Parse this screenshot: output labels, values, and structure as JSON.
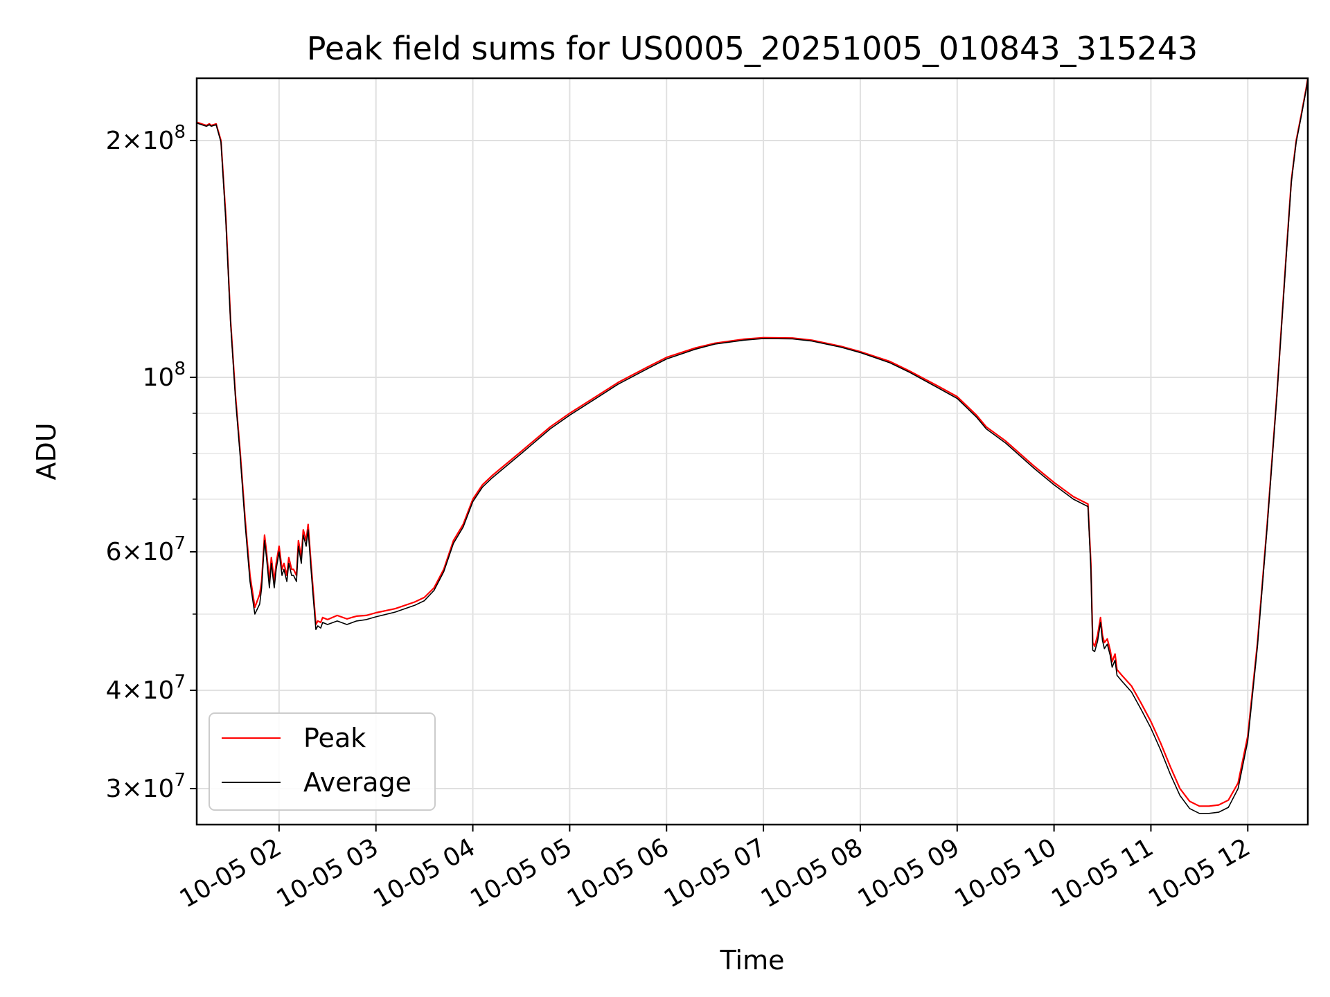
{
  "chart_data": {
    "type": "line",
    "title": "Peak field sums for US0005_20251005_010843_315243",
    "xlabel": "Time",
    "ylabel": "ADU",
    "yscale": "log",
    "xlim_hours": [
      1.15,
      12.62
    ],
    "ylim": [
      27000000,
      240000000
    ],
    "grid": true,
    "legend_position": "lower-left",
    "x_ticks": [
      {
        "hour": 2,
        "label": "10-05 02"
      },
      {
        "hour": 3,
        "label": "10-05 03"
      },
      {
        "hour": 4,
        "label": "10-05 04"
      },
      {
        "hour": 5,
        "label": "10-05 05"
      },
      {
        "hour": 6,
        "label": "10-05 06"
      },
      {
        "hour": 7,
        "label": "10-05 07"
      },
      {
        "hour": 8,
        "label": "10-05 08"
      },
      {
        "hour": 9,
        "label": "10-05 09"
      },
      {
        "hour": 10,
        "label": "10-05 10"
      },
      {
        "hour": 11,
        "label": "10-05 11"
      },
      {
        "hour": 12,
        "label": "10-05 12"
      }
    ],
    "y_ticks": [
      {
        "value": 30000000,
        "mantissa": "3",
        "exponent": "7"
      },
      {
        "value": 40000000,
        "mantissa": "4",
        "exponent": "7"
      },
      {
        "value": 60000000,
        "mantissa": "6",
        "exponent": "7"
      },
      {
        "value": 100000000,
        "mantissa": "",
        "exponent": "8"
      },
      {
        "value": 200000000,
        "mantissa": "2",
        "exponent": "8"
      }
    ],
    "y_minor_ticks": [
      50000000,
      70000000,
      80000000,
      90000000
    ],
    "series": [
      {
        "name": "Peak",
        "color": "#ff0000",
        "x": [
          1.15,
          1.2,
          1.25,
          1.28,
          1.3,
          1.35,
          1.4,
          1.45,
          1.5,
          1.55,
          1.6,
          1.65,
          1.7,
          1.75,
          1.8,
          1.82,
          1.85,
          1.87,
          1.9,
          1.92,
          1.95,
          1.97,
          2.0,
          2.03,
          2.05,
          2.08,
          2.1,
          2.13,
          2.15,
          2.18,
          2.2,
          2.23,
          2.25,
          2.28,
          2.3,
          2.33,
          2.35,
          2.38,
          2.4,
          2.43,
          2.45,
          2.5,
          2.6,
          2.7,
          2.8,
          2.9,
          3.0,
          3.2,
          3.4,
          3.5,
          3.6,
          3.7,
          3.8,
          3.9,
          4.0,
          4.1,
          4.2,
          4.5,
          4.8,
          5.0,
          5.3,
          5.5,
          5.8,
          6.0,
          6.3,
          6.5,
          6.8,
          7.0,
          7.3,
          7.5,
          7.8,
          8.0,
          8.3,
          8.5,
          8.8,
          9.0,
          9.2,
          9.3,
          9.5,
          9.8,
          10.0,
          10.2,
          10.35,
          10.38,
          10.4,
          10.42,
          10.45,
          10.48,
          10.5,
          10.52,
          10.55,
          10.58,
          10.6,
          10.63,
          10.65,
          10.7,
          10.8,
          10.9,
          11.0,
          11.1,
          11.2,
          11.3,
          11.4,
          11.5,
          11.6,
          11.7,
          11.8,
          11.9,
          12.0,
          12.1,
          12.2,
          12.3,
          12.4,
          12.45,
          12.5,
          12.55,
          12.6,
          12.62
        ],
        "y": [
          211000000,
          210000000,
          209000000,
          210000000,
          209000000,
          210000000,
          200000000,
          160000000,
          118000000,
          95000000,
          80000000,
          66000000,
          56000000,
          51000000,
          53000000,
          55000000,
          63000000,
          60000000,
          55000000,
          59000000,
          55000000,
          58000000,
          61000000,
          57000000,
          58000000,
          56000000,
          59000000,
          57000000,
          57000000,
          56000000,
          62000000,
          59000000,
          64000000,
          62000000,
          65000000,
          58000000,
          54000000,
          48500000,
          49000000,
          48800000,
          49500000,
          49200000,
          49800000,
          49300000,
          49700000,
          49800000,
          50200000,
          50800000,
          51800000,
          52500000,
          54000000,
          57000000,
          62000000,
          65000000,
          70000000,
          73000000,
          75000000,
          80500000,
          86500000,
          90000000,
          95000000,
          98500000,
          103000000,
          106000000,
          109000000,
          110500000,
          111800000,
          112300000,
          112200000,
          111500000,
          109500000,
          107800000,
          104800000,
          102000000,
          97500000,
          94500000,
          89500000,
          86500000,
          83000000,
          77000000,
          73500000,
          70500000,
          69000000,
          58000000,
          46000000,
          45500000,
          47000000,
          49500000,
          47000000,
          46000000,
          46500000,
          45000000,
          43500000,
          44500000,
          42500000,
          41800000,
          40500000,
          38500000,
          36500000,
          34300000,
          32000000,
          30000000,
          28900000,
          28500000,
          28500000,
          28600000,
          29000000,
          30500000,
          35000000,
          46000000,
          65000000,
          95000000,
          145000000,
          178000000,
          200000000,
          215000000,
          232000000,
          240000000
        ]
      },
      {
        "name": "Average",
        "color": "#000000",
        "x": [
          1.15,
          1.2,
          1.25,
          1.28,
          1.3,
          1.35,
          1.4,
          1.45,
          1.5,
          1.55,
          1.6,
          1.65,
          1.7,
          1.75,
          1.8,
          1.82,
          1.85,
          1.87,
          1.9,
          1.92,
          1.95,
          1.97,
          2.0,
          2.03,
          2.05,
          2.08,
          2.1,
          2.13,
          2.15,
          2.18,
          2.2,
          2.23,
          2.25,
          2.28,
          2.3,
          2.33,
          2.35,
          2.38,
          2.4,
          2.43,
          2.45,
          2.5,
          2.6,
          2.7,
          2.8,
          2.9,
          3.0,
          3.2,
          3.4,
          3.5,
          3.6,
          3.7,
          3.8,
          3.9,
          4.0,
          4.1,
          4.2,
          4.5,
          4.8,
          5.0,
          5.3,
          5.5,
          5.8,
          6.0,
          6.3,
          6.5,
          6.8,
          7.0,
          7.3,
          7.5,
          7.8,
          8.0,
          8.3,
          8.5,
          8.8,
          9.0,
          9.2,
          9.3,
          9.5,
          9.8,
          10.0,
          10.2,
          10.35,
          10.38,
          10.4,
          10.42,
          10.45,
          10.48,
          10.5,
          10.52,
          10.55,
          10.58,
          10.6,
          10.63,
          10.65,
          10.7,
          10.8,
          10.9,
          11.0,
          11.1,
          11.2,
          11.3,
          11.4,
          11.5,
          11.6,
          11.7,
          11.8,
          11.9,
          12.0,
          12.1,
          12.2,
          12.3,
          12.4,
          12.45,
          12.5,
          12.55,
          12.6,
          12.62
        ],
        "y": [
          210500000,
          209500000,
          208500000,
          209500000,
          208500000,
          209500000,
          199000000,
          158000000,
          117000000,
          94000000,
          79000000,
          65000000,
          55000000,
          50000000,
          51500000,
          54000000,
          62000000,
          59000000,
          54000000,
          58000000,
          54000000,
          57000000,
          60000000,
          56000000,
          57000000,
          55000000,
          58000000,
          56000000,
          56000000,
          55000000,
          61000000,
          58000000,
          63000000,
          61000000,
          64000000,
          57000000,
          53000000,
          47800000,
          48300000,
          48000000,
          48800000,
          48500000,
          49000000,
          48500000,
          49000000,
          49200000,
          49600000,
          50300000,
          51300000,
          52000000,
          53600000,
          56600000,
          61500000,
          64500000,
          69500000,
          72500000,
          74500000,
          80000000,
          86000000,
          89500000,
          94500000,
          98000000,
          102500000,
          105500000,
          108600000,
          110200000,
          111500000,
          112000000,
          111900000,
          111200000,
          109200000,
          107500000,
          104400000,
          101600000,
          97000000,
          94000000,
          89000000,
          86000000,
          82500000,
          76500000,
          73000000,
          70000000,
          68500000,
          57000000,
          45000000,
          44800000,
          46200000,
          48800000,
          46300000,
          45200000,
          45800000,
          44300000,
          42800000,
          43700000,
          41800000,
          41100000,
          39800000,
          37800000,
          35800000,
          33600000,
          31300000,
          29400000,
          28300000,
          27900000,
          27900000,
          28000000,
          28400000,
          30000000,
          34500000,
          45500000,
          64500000,
          94500000,
          144000000,
          177000000,
          199000000,
          214000000,
          231000000,
          239000000
        ]
      }
    ]
  }
}
